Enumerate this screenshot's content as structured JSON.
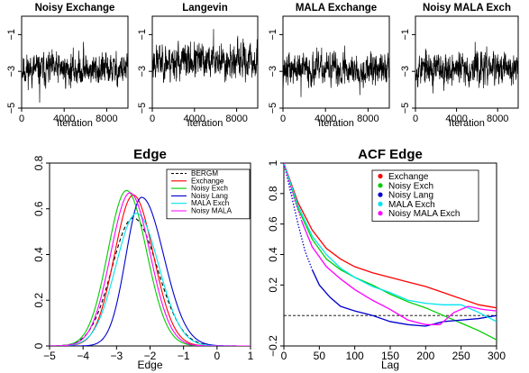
{
  "chart_data": [
    {
      "type": "line",
      "title": "Noisy Exchange",
      "xlabel": "Iteration",
      "ylabel": "",
      "xlim": [
        0,
        10000
      ],
      "ylim": [
        -5,
        0
      ],
      "xticks": [
        0,
        4000,
        8000
      ],
      "yticks": [
        -1,
        -3,
        -5
      ],
      "series": [
        {
          "n": 10000,
          "mean": -2.9,
          "sd": 0.45,
          "min": -4.7,
          "max": -1.4,
          "seed": 11
        }
      ]
    },
    {
      "type": "line",
      "title": "Langevin",
      "xlabel": "Iteration",
      "ylabel": "",
      "xlim": [
        0,
        10000
      ],
      "ylim": [
        -5,
        0
      ],
      "xticks": [
        0,
        4000,
        8000
      ],
      "yticks": [
        -1,
        -3,
        -5
      ],
      "series": [
        {
          "n": 10000,
          "mean": -2.45,
          "sd": 0.5,
          "min": -3.6,
          "max": -0.7,
          "seed": 23
        }
      ]
    },
    {
      "type": "line",
      "title": "MALA Exchange",
      "xlabel": "Iteration",
      "ylabel": "",
      "xlim": [
        0,
        10000
      ],
      "ylim": [
        -5,
        0
      ],
      "xticks": [
        0,
        4000,
        8000
      ],
      "yticks": [
        -1,
        -3,
        -5
      ],
      "series": [
        {
          "n": 10000,
          "mean": -2.9,
          "sd": 0.45,
          "min": -4.4,
          "max": -1.6,
          "seed": 37
        }
      ]
    },
    {
      "type": "line",
      "title": "Noisy MALA Exch",
      "xlabel": "Iteration",
      "ylabel": "",
      "xlim": [
        0,
        10000
      ],
      "ylim": [
        -5,
        0
      ],
      "xticks": [
        0,
        4000,
        8000
      ],
      "yticks": [
        -1,
        -3,
        -5
      ],
      "series": [
        {
          "n": 10000,
          "mean": -2.85,
          "sd": 0.45,
          "min": -4.2,
          "max": -1.4,
          "seed": 53
        }
      ]
    },
    {
      "type": "line",
      "title": "Edge",
      "xlabel": "Edge",
      "ylabel": "",
      "xlim": [
        -5,
        1
      ],
      "ylim": [
        0,
        0.8
      ],
      "xticks": [
        -5,
        -4,
        -3,
        -2,
        -1,
        0,
        1
      ],
      "yticks": [
        0.0,
        0.2,
        0.4,
        0.6,
        0.8
      ],
      "legend": "top-right",
      "series": [
        {
          "name": "BERGM",
          "color": "#000000",
          "dash": true,
          "mode": -2.5,
          "peak": 0.56,
          "sl": 0.64,
          "sr": 0.72
        },
        {
          "name": "Exchange",
          "color": "#ff0000",
          "mode": -2.5,
          "peak": 0.66,
          "sl": 0.56,
          "sr": 0.6
        },
        {
          "name": "Noisy Exch",
          "color": "#00cd00",
          "mode": -2.7,
          "peak": 0.68,
          "sl": 0.56,
          "sr": 0.6
        },
        {
          "name": "Noisy Lang",
          "color": "#0000cd",
          "mode": -2.25,
          "peak": 0.65,
          "sl": 0.47,
          "sr": 0.66
        },
        {
          "name": "MALA Exch",
          "color": "#00e5ee",
          "mode": -2.4,
          "peak": 0.58,
          "sl": 0.62,
          "sr": 0.66
        },
        {
          "name": "Noisy MALA",
          "color": "#ff00ff",
          "mode": -2.6,
          "peak": 0.67,
          "sl": 0.57,
          "sr": 0.6
        }
      ]
    },
    {
      "type": "line",
      "title": "ACF Edge",
      "xlabel": "Lag",
      "ylabel": "",
      "xlim": [
        0,
        300
      ],
      "ylim": [
        -0.2,
        1.0
      ],
      "xticks": [
        0,
        50,
        100,
        150,
        200,
        250,
        300
      ],
      "yticks": [
        -0.2,
        0.2,
        0.4,
        0.6,
        0.8,
        1.0
      ],
      "legend": "top-right",
      "hline": 0,
      "series": [
        {
          "name": "Exchange",
          "color": "#ff0000",
          "x": [
            0,
            20,
            40,
            60,
            80,
            100,
            125,
            150,
            175,
            200,
            225,
            250,
            275,
            300
          ],
          "y": [
            1.0,
            0.74,
            0.56,
            0.44,
            0.37,
            0.32,
            0.28,
            0.25,
            0.22,
            0.19,
            0.15,
            0.11,
            0.07,
            0.05
          ]
        },
        {
          "name": "Noisy Exch",
          "color": "#00cd00",
          "x": [
            0,
            20,
            40,
            60,
            80,
            100,
            125,
            150,
            175,
            200,
            225,
            250,
            275,
            300
          ],
          "y": [
            1.0,
            0.7,
            0.5,
            0.37,
            0.3,
            0.25,
            0.2,
            0.14,
            0.09,
            0.05,
            0.0,
            -0.05,
            -0.1,
            -0.16
          ]
        },
        {
          "name": "Noisy Lang",
          "color": "#0000cd",
          "dotted_to": 40,
          "x": [
            0,
            10,
            20,
            30,
            40,
            50,
            65,
            80,
            100,
            125,
            150,
            175,
            200,
            225,
            250,
            275,
            300
          ],
          "y": [
            1.0,
            0.8,
            0.6,
            0.42,
            0.3,
            0.2,
            0.12,
            0.06,
            0.03,
            0.0,
            -0.04,
            -0.06,
            -0.07,
            -0.04,
            -0.03,
            -0.02,
            0.0
          ]
        },
        {
          "name": "MALA Exch",
          "color": "#00e5ee",
          "x": [
            0,
            20,
            40,
            60,
            80,
            100,
            125,
            150,
            175,
            200,
            225,
            250,
            275,
            300
          ],
          "y": [
            1.0,
            0.72,
            0.52,
            0.4,
            0.31,
            0.25,
            0.19,
            0.15,
            0.1,
            0.08,
            0.07,
            0.07,
            0.02,
            -0.04
          ]
        },
        {
          "name": "Noisy MALA Exch",
          "color": "#ff00ff",
          "dotted_to": 25,
          "x": [
            0,
            12,
            25,
            40,
            60,
            80,
            100,
            125,
            150,
            175,
            200,
            220,
            240,
            260,
            280,
            300
          ],
          "y": [
            1.0,
            0.8,
            0.62,
            0.45,
            0.32,
            0.24,
            0.17,
            0.1,
            0.04,
            -0.03,
            -0.06,
            -0.06,
            0.02,
            0.06,
            0.04,
            0.03
          ]
        }
      ]
    }
  ]
}
